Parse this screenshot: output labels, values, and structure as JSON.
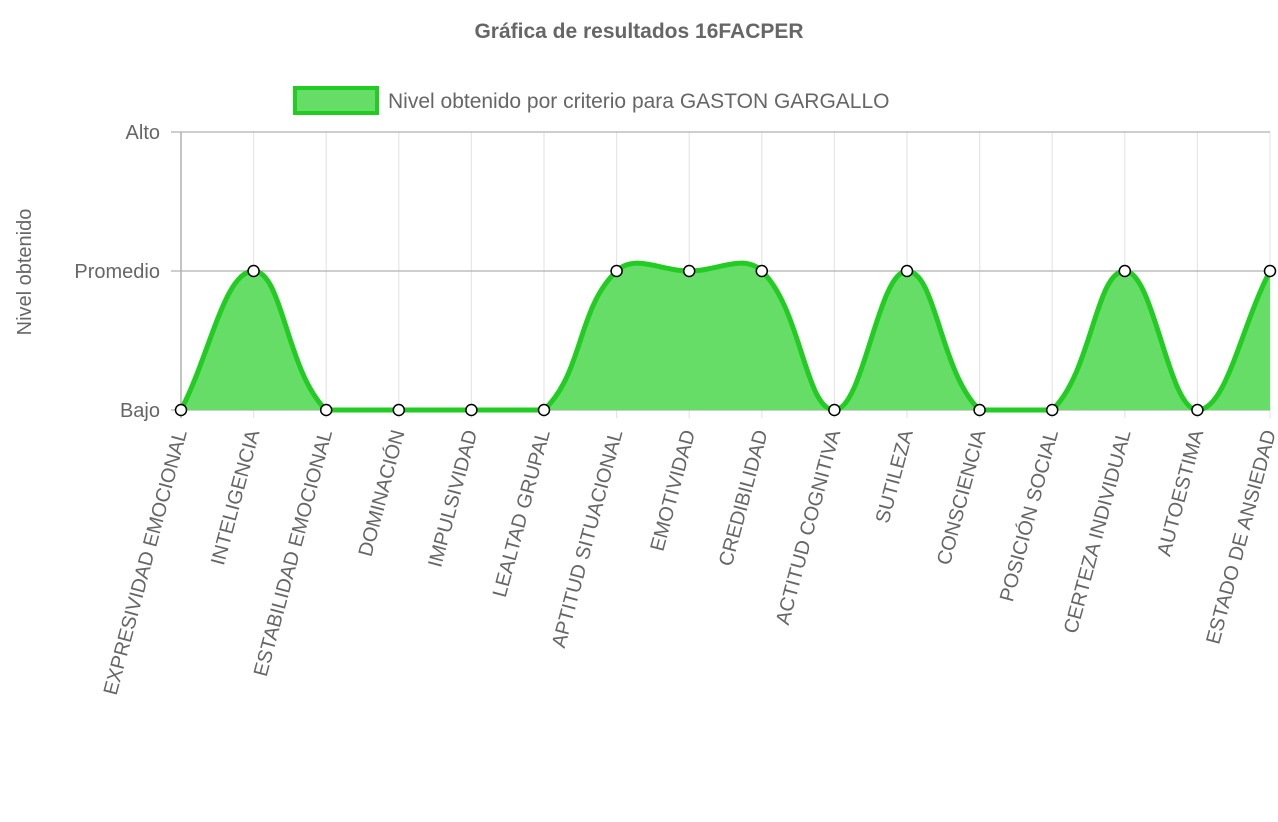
{
  "chart_data": {
    "type": "area",
    "title": "Gráfica de resultados 16FACPER",
    "ylabel": "Nivel obtenido",
    "xlabel": "",
    "y_ticks": [
      {
        "value": 1,
        "label": "Bajo"
      },
      {
        "value": 2,
        "label": "Promedio"
      },
      {
        "value": 3,
        "label": "Alto"
      }
    ],
    "ylim": [
      1,
      3
    ],
    "categories": [
      "EXPRESIVIDAD EMOCIONAL",
      "INTELIGENCIA",
      "ESTABILIDAD EMOCIONAL",
      "DOMINACIÓN",
      "IMPULSIVIDAD",
      "LEALTAD GRUPAL",
      "APTITUD SITUACIONAL",
      "EMOTIVIDAD",
      "CREDIBILIDAD",
      "ACTITUD COGNITIVA",
      "SUTILEZA",
      "CONSCIENCIA",
      "POSICIÓN SOCIAL",
      "CERTEZA INDIVIDUAL",
      "AUTOESTIMA",
      "ESTADO DE ANSIEDAD"
    ],
    "series": [
      {
        "name": "Nivel obtenido por criterio para GASTON GARGALLO",
        "values": [
          1,
          2,
          1,
          1,
          1,
          1,
          2,
          2,
          2,
          1,
          2,
          1,
          1,
          2,
          1,
          2
        ]
      }
    ],
    "grid": true,
    "legend_position": "top",
    "colors": {
      "fill": "#66dd66",
      "stroke": "#22cc22",
      "point_fill": "#ffffff",
      "point_stroke": "#000000",
      "grid": "#e6e6e6",
      "axis": "#b0b0b0"
    }
  }
}
